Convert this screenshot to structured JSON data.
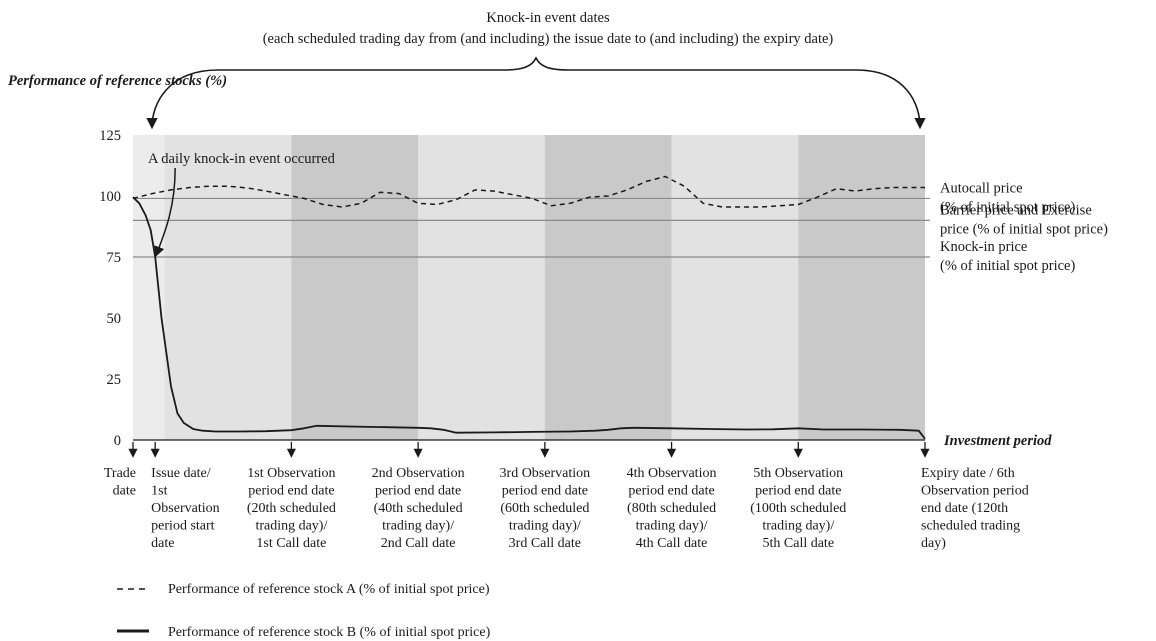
{
  "chart_data": {
    "type": "line",
    "title_lines": [
      "Knock-in event dates",
      "(each scheduled trading day from (and including) the issue date to (and including) the expiry date)"
    ],
    "ylabel": "Performance of reference stocks (%)",
    "xlabel": "Investment period",
    "ylim": [
      0,
      125
    ],
    "yticks": [
      0,
      25,
      50,
      75,
      100,
      125
    ],
    "x_domain": [
      -5,
      120
    ],
    "ytick_labels": [
      "0",
      "25",
      "50",
      "75",
      "100",
      "125"
    ],
    "observation_periods": [
      {
        "from": 0,
        "to": 20,
        "shade": "light"
      },
      {
        "from": 20,
        "to": 40,
        "shade": "dark"
      },
      {
        "from": 40,
        "to": 60,
        "shade": "light"
      },
      {
        "from": 60,
        "to": 80,
        "shade": "dark"
      },
      {
        "from": 80,
        "to": 100,
        "shade": "light"
      },
      {
        "from": 100,
        "to": 120,
        "shade": "dark"
      }
    ],
    "reference_lines": [
      {
        "y": 99,
        "lines": [
          "Autocall price",
          " (% of initial spot price)"
        ]
      },
      {
        "y": 90,
        "lines": [
          "Barrier price and Exercise",
          "price (% of initial spot price)"
        ]
      },
      {
        "y": 75,
        "lines": [
          "Knock-in price",
          "(% of initial spot price)"
        ]
      }
    ],
    "annotation": "A daily knock-in event occurred",
    "knock_in_point": {
      "x": -1.5,
      "y": 75
    },
    "x_markers": [
      {
        "x": -5,
        "lines": [
          "Trade",
          "date"
        ],
        "align": "right"
      },
      {
        "x": -1.5,
        "lines": [
          "Issue date/",
          "1st",
          "Observation",
          "period start",
          "date"
        ],
        "align": "left"
      },
      {
        "x": 20,
        "lines": [
          "1st Observation",
          "period end date",
          "(20th scheduled",
          "trading day)/",
          "1st Call date"
        ],
        "align": "center"
      },
      {
        "x": 40,
        "lines": [
          "2nd Observation",
          "period end date",
          "(40th scheduled",
          "trading day)/",
          "2nd Call date"
        ],
        "align": "center"
      },
      {
        "x": 60,
        "lines": [
          "3rd  Observation",
          "period end date",
          "(60th scheduled",
          "trading day)/",
          "3rd Call date"
        ],
        "align": "center"
      },
      {
        "x": 80,
        "lines": [
          "4th Observation",
          "period end date",
          "(80th scheduled",
          "trading day)/",
          "4th Call date"
        ],
        "align": "center"
      },
      {
        "x": 100,
        "lines": [
          "5th Observation",
          "period end date",
          " (100th scheduled",
          " trading day)/",
          "5th Call date"
        ],
        "align": "center"
      },
      {
        "x": 120,
        "lines": [
          "Expiry date / 6th",
          "Observation period",
          "end date (120th",
          "scheduled trading",
          "day)"
        ],
        "align": "left"
      }
    ],
    "series": [
      {
        "name": "Performance of reference stock A (% of initial spot price)",
        "style": "dashed",
        "x": [
          -5,
          -2,
          1,
          4,
          7,
          10,
          13,
          16,
          19,
          22,
          25,
          28,
          31,
          34,
          37,
          40,
          43,
          46,
          49,
          52,
          55,
          58,
          61,
          64,
          67,
          70,
          73,
          76,
          79,
          82,
          85,
          88,
          91,
          94,
          97,
          100,
          103,
          106,
          109,
          112,
          115,
          120
        ],
        "y": [
          99,
          101,
          102.5,
          103.5,
          104,
          104,
          103.3,
          102,
          100.5,
          99,
          96.5,
          95.5,
          97,
          101.5,
          101,
          97,
          96.5,
          98.5,
          102.5,
          102,
          100.5,
          99,
          96,
          97,
          99.5,
          100,
          102.5,
          106,
          108,
          104,
          97,
          95.5,
          95.5,
          95.5,
          96,
          96.5,
          99.5,
          103,
          102,
          103,
          103.5,
          103.5
        ]
      },
      {
        "name": "Performance of reference stock B (% of initial spot price)",
        "style": "solid",
        "x": [
          -5,
          -4,
          -3,
          -2.2,
          -1.5,
          -0.5,
          1,
          2,
          3,
          4.5,
          6,
          8,
          12,
          16,
          20,
          22,
          24,
          30,
          36,
          40,
          42,
          44,
          46,
          52,
          58,
          64,
          68,
          70,
          72,
          74,
          80,
          86,
          92,
          96,
          98,
          100,
          104,
          110,
          116,
          119,
          120
        ],
        "y": [
          99.5,
          97,
          92,
          86,
          75,
          50,
          22,
          11,
          7,
          4.5,
          3.8,
          3.5,
          3.5,
          3.6,
          4,
          4.8,
          5.8,
          5.5,
          5.2,
          5,
          4.8,
          4.2,
          3,
          3.1,
          3.3,
          3.5,
          3.8,
          4.2,
          4.8,
          5,
          4.8,
          4.5,
          4.3,
          4.4,
          4.6,
          4.8,
          4.3,
          4.3,
          4.2,
          3.8,
          0.5
        ]
      }
    ],
    "legend": [
      {
        "style": "dashed",
        "label": "Performance of reference stock A (% of initial spot price)"
      },
      {
        "style": "solid",
        "label": "Performance of reference stock B (% of initial spot price)"
      }
    ],
    "colors": {
      "background": "#ffffff",
      "plot_margin": "#ececec",
      "shade_light": "#e2e2e2",
      "shade_dark": "#c9c9c9",
      "reference_line": "#8a8a8a",
      "ink": "#1a1a1a"
    }
  }
}
